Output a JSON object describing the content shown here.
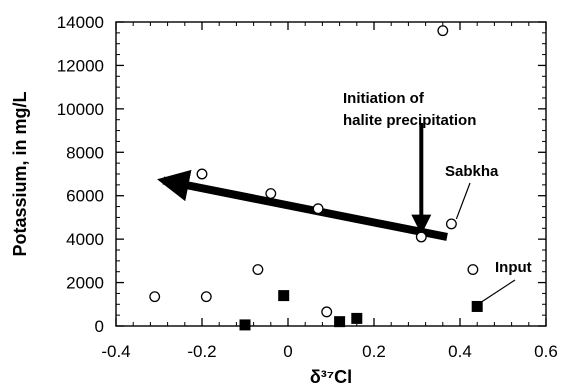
{
  "chart_data": {
    "type": "scatter",
    "xlabel": "δ³⁷Cl",
    "ylabel": "Potassium, in mg/L",
    "xlim": [
      -0.4,
      0.6
    ],
    "ylim": [
      0,
      14000
    ],
    "x_ticks": [
      -0.4,
      -0.2,
      0,
      0.2,
      0.4,
      0.6
    ],
    "x_tick_labels": [
      "-0.4",
      "-0.2",
      "0",
      "0.2",
      "0.4",
      "0.6"
    ],
    "y_ticks": [
      0,
      2000,
      4000,
      6000,
      8000,
      10000,
      12000,
      14000
    ],
    "y_tick_labels": [
      "0",
      "2000",
      "4000",
      "6000",
      "8000",
      "10000",
      "12000",
      "14000"
    ],
    "grid": false,
    "series": [
      {
        "name": "Sabkha",
        "marker": "open-circle",
        "color": "#000000",
        "points": [
          {
            "x": -0.31,
            "y": 1350
          },
          {
            "x": -0.19,
            "y": 1350
          },
          {
            "x": -0.2,
            "y": 7000
          },
          {
            "x": -0.07,
            "y": 2600
          },
          {
            "x": -0.04,
            "y": 6100
          },
          {
            "x": 0.07,
            "y": 5400
          },
          {
            "x": 0.09,
            "y": 650
          },
          {
            "x": 0.31,
            "y": 4100
          },
          {
            "x": 0.36,
            "y": 13600
          },
          {
            "x": 0.38,
            "y": 4700
          },
          {
            "x": 0.43,
            "y": 2600
          }
        ]
      },
      {
        "name": "Input",
        "marker": "filled-square",
        "color": "#000000",
        "points": [
          {
            "x": -0.1,
            "y": 50
          },
          {
            "x": -0.01,
            "y": 1400
          },
          {
            "x": 0.12,
            "y": 200
          },
          {
            "x": 0.16,
            "y": 350
          },
          {
            "x": 0.44,
            "y": 900
          }
        ]
      }
    ],
    "trend_arrow": {
      "from": {
        "x": 0.37,
        "y": 4100
      },
      "to": {
        "x": -0.29,
        "y": 6700
      }
    },
    "annotations": {
      "initiation": {
        "lines": [
          "Initiation of",
          "halite precipitation"
        ],
        "arrow_x": 0.31,
        "arrow_y_top": 9350,
        "arrow_y_tip": 4300
      },
      "sabkha": {
        "text": "Sabkha",
        "leader_to": {
          "x": 0.38,
          "y": 4700
        }
      },
      "input": {
        "text": "Input",
        "leader_to": {
          "x": 0.44,
          "y": 900
        }
      }
    }
  }
}
